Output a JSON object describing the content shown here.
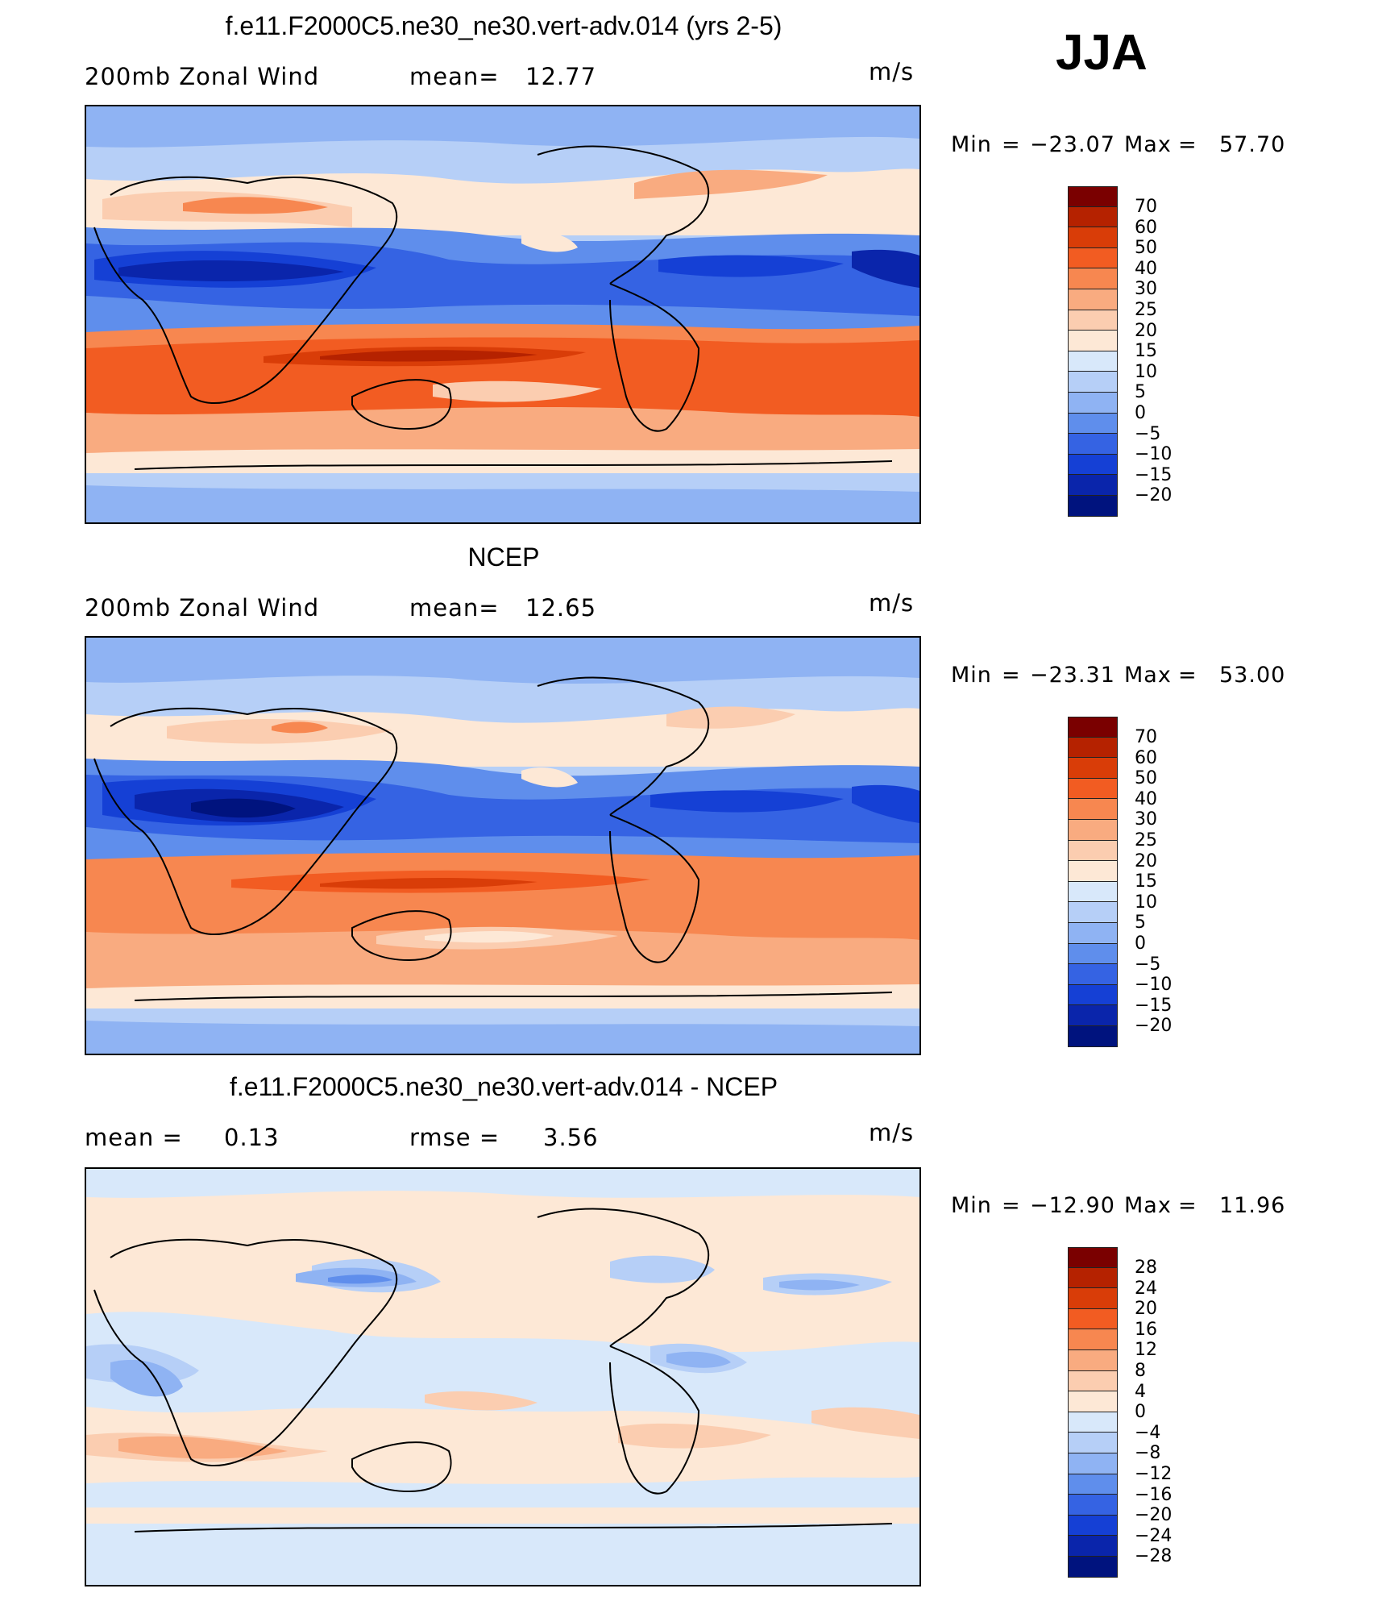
{
  "season": "JJA",
  "panels": [
    {
      "title": "f.e11.F2000C5.ne30_ne30.vert-adv.014 (yrs 2-5)",
      "left_label": "200mb Zonal Wind",
      "stat_label": "mean=",
      "stat_value": "12.77",
      "stat2_label": "",
      "stat2_value": "",
      "units": "m/s",
      "min_label": "Min",
      "min_value": "−23.07",
      "max_label": "Max",
      "max_value": "57.70",
      "colorbar_ticks": [
        "70",
        "60",
        "50",
        "40",
        "30",
        "25",
        "20",
        "15",
        "10",
        "5",
        "0",
        "−5",
        "−10",
        "−15",
        "−20"
      ],
      "colorbar_colors": [
        "#7a0000",
        "#b52200",
        "#d93d08",
        "#f25c22",
        "#f78750",
        "#f9ab80",
        "#fbcdb0",
        "#fde8d6",
        "#d8e8fa",
        "#b6cff7",
        "#8fb3f3",
        "#5f8eec",
        "#3563e3",
        "#1540d5",
        "#0a25ab",
        "#00137e"
      ]
    },
    {
      "title": "NCEP",
      "left_label": "200mb Zonal Wind",
      "stat_label": "mean=",
      "stat_value": "12.65",
      "stat2_label": "",
      "stat2_value": "",
      "units": "m/s",
      "min_label": "Min",
      "min_value": "−23.31",
      "max_label": "Max",
      "max_value": "53.00",
      "colorbar_ticks": [
        "70",
        "60",
        "50",
        "40",
        "30",
        "25",
        "20",
        "15",
        "10",
        "5",
        "0",
        "−5",
        "−10",
        "−15",
        "−20"
      ],
      "colorbar_colors": [
        "#7a0000",
        "#b52200",
        "#d93d08",
        "#f25c22",
        "#f78750",
        "#f9ab80",
        "#fbcdb0",
        "#fde8d6",
        "#d8e8fa",
        "#b6cff7",
        "#8fb3f3",
        "#5f8eec",
        "#3563e3",
        "#1540d5",
        "#0a25ab",
        "#00137e"
      ]
    },
    {
      "title": "f.e11.F2000C5.ne30_ne30.vert-adv.014 - NCEP",
      "left_label": "mean =",
      "stat_label": "",
      "stat_value": "0.13",
      "stat2_label": "rmse =",
      "stat2_value": "3.56",
      "units": "m/s",
      "min_label": "Min",
      "min_value": "−12.90",
      "max_label": "Max",
      "max_value": "11.96",
      "colorbar_ticks": [
        "28",
        "24",
        "20",
        "16",
        "12",
        "8",
        "4",
        "0",
        "−4",
        "−8",
        "−12",
        "−16",
        "−20",
        "−24",
        "−28"
      ],
      "colorbar_colors": [
        "#7a0000",
        "#b52200",
        "#d93d08",
        "#f25c22",
        "#f78750",
        "#f9ab80",
        "#fbcdb0",
        "#fde8d6",
        "#d8e8fa",
        "#b6cff7",
        "#8fb3f3",
        "#5f8eec",
        "#3563e3",
        "#1540d5",
        "#0a25ab",
        "#00137e"
      ]
    }
  ]
}
